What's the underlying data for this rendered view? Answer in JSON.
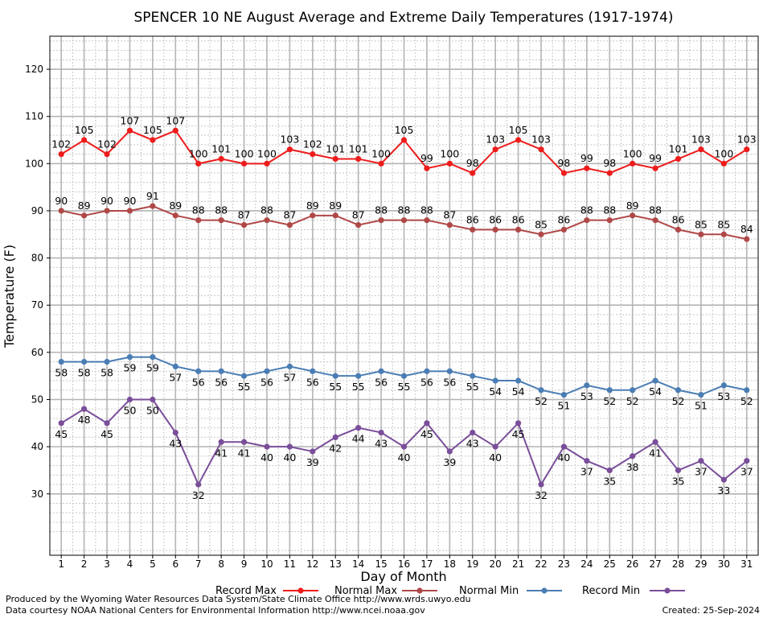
{
  "chart_data": {
    "type": "line",
    "title": "SPENCER 10 NE August Average and Extreme Daily Temperatures (1917-1974)",
    "xlabel": "Day of Month",
    "ylabel": "Temperature (F)",
    "x": [
      1,
      2,
      3,
      4,
      5,
      6,
      7,
      8,
      9,
      10,
      11,
      12,
      13,
      14,
      15,
      16,
      17,
      18,
      19,
      20,
      21,
      22,
      23,
      24,
      25,
      26,
      27,
      28,
      29,
      30,
      31
    ],
    "x_ticks": [
      "1",
      "2",
      "3",
      "4",
      "5",
      "6",
      "7",
      "8",
      "9",
      "10",
      "11",
      "12",
      "13",
      "14",
      "15",
      "16",
      "17",
      "18",
      "19",
      "20",
      "21",
      "22",
      "23",
      "24",
      "25",
      "26",
      "27",
      "28",
      "29",
      "30",
      "31"
    ],
    "xlim": [
      0.5,
      31.5
    ],
    "ylim": [
      17,
      127
    ],
    "y_ticks": [
      "30",
      "40",
      "50",
      "60",
      "70",
      "80",
      "90",
      "100",
      "110",
      "120"
    ],
    "y_tick_values": [
      30,
      40,
      50,
      60,
      70,
      80,
      90,
      100,
      110,
      120
    ],
    "grid": true,
    "legend_position": "bottom",
    "series": [
      {
        "name": "Record Max",
        "color": "#ee1c1c",
        "label_position": "above",
        "values": [
          102,
          105,
          102,
          107,
          105,
          107,
          100,
          101,
          100,
          100,
          103,
          102,
          101,
          101,
          100,
          105,
          99,
          100,
          98,
          103,
          105,
          103,
          98,
          99,
          98,
          100,
          99,
          101,
          103,
          100,
          103
        ]
      },
      {
        "name": "Normal Max",
        "color": "#b04848",
        "label_position": "above",
        "values": [
          90,
          89,
          90,
          90,
          91,
          89,
          88,
          88,
          87,
          88,
          87,
          89,
          89,
          87,
          88,
          88,
          88,
          87,
          86,
          86,
          86,
          85,
          86,
          88,
          88,
          89,
          88,
          86,
          85,
          85,
          84
        ]
      },
      {
        "name": "Normal Min",
        "color": "#4a7db4",
        "label_position": "below",
        "values": [
          58,
          58,
          58,
          59,
          59,
          57,
          56,
          56,
          55,
          56,
          57,
          56,
          55,
          55,
          56,
          55,
          56,
          56,
          55,
          54,
          54,
          52,
          51,
          53,
          52,
          52,
          54,
          52,
          51,
          53,
          52
        ]
      },
      {
        "name": "Record Min",
        "color": "#7a4e9a",
        "label_position": "below",
        "values": [
          45,
          48,
          45,
          50,
          50,
          43,
          32,
          41,
          41,
          40,
          40,
          39,
          42,
          44,
          43,
          40,
          45,
          39,
          43,
          40,
          45,
          32,
          40,
          37,
          35,
          38,
          41,
          35,
          37,
          33,
          37
        ]
      }
    ]
  },
  "footer": {
    "produced_by": "Produced by the Wyoming Water Resources Data System/State Climate Office http://www.wrds.uwyo.edu",
    "data_courtesy": "Data courtesy NOAA National Centers for Environmental Information http://www.ncei.noaa.gov",
    "created": "Created:  25-Sep-2024"
  }
}
